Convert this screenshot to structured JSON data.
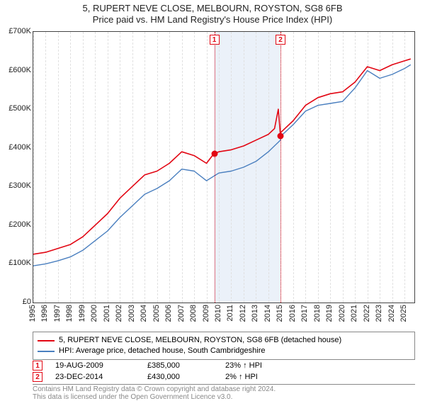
{
  "title": {
    "line1": "5, RUPERT NEVE CLOSE, MELBOURN, ROYSTON, SG8 6FB",
    "line2": "Price paid vs. HM Land Registry's House Price Index (HPI)"
  },
  "chart": {
    "type": "line",
    "plot_bg": "#ffffff",
    "border_color": "#444444",
    "x": {
      "min": 1995,
      "max": 2025.8,
      "ticks": [
        1995,
        1996,
        1997,
        1998,
        1999,
        2000,
        2001,
        2002,
        2003,
        2004,
        2005,
        2006,
        2007,
        2008,
        2009,
        2010,
        2011,
        2012,
        2013,
        2014,
        2015,
        2016,
        2017,
        2018,
        2019,
        2020,
        2021,
        2022,
        2023,
        2024,
        2025
      ]
    },
    "y": {
      "min": 0,
      "max": 700,
      "ticks": [
        0,
        100,
        200,
        300,
        400,
        500,
        600,
        700
      ],
      "prefix": "£",
      "suffix": "K"
    },
    "grid_color": "#e0e0e0",
    "shade": {
      "start": 2009.6,
      "end": 2014.98,
      "color": "#dbe6f4"
    },
    "series": [
      {
        "name": "price_paid",
        "color": "#e20613",
        "width": 1.6,
        "data": [
          [
            1995,
            125
          ],
          [
            1996,
            130
          ],
          [
            1997,
            140
          ],
          [
            1998,
            150
          ],
          [
            1999,
            170
          ],
          [
            2000,
            200
          ],
          [
            2001,
            230
          ],
          [
            2002,
            270
          ],
          [
            2003,
            300
          ],
          [
            2004,
            330
          ],
          [
            2005,
            340
          ],
          [
            2006,
            360
          ],
          [
            2007,
            390
          ],
          [
            2008,
            380
          ],
          [
            2009,
            360
          ],
          [
            2009.6,
            385
          ],
          [
            2010,
            390
          ],
          [
            2011,
            395
          ],
          [
            2012,
            405
          ],
          [
            2013,
            420
          ],
          [
            2014,
            435
          ],
          [
            2014.5,
            450
          ],
          [
            2014.8,
            500
          ],
          [
            2014.98,
            430
          ],
          [
            2015,
            440
          ],
          [
            2016,
            470
          ],
          [
            2017,
            510
          ],
          [
            2018,
            530
          ],
          [
            2019,
            540
          ],
          [
            2020,
            545
          ],
          [
            2021,
            570
          ],
          [
            2022,
            610
          ],
          [
            2023,
            600
          ],
          [
            2024,
            615
          ],
          [
            2025,
            625
          ],
          [
            2025.5,
            630
          ]
        ]
      },
      {
        "name": "hpi",
        "color": "#4a7fbf",
        "width": 1.4,
        "data": [
          [
            1995,
            95
          ],
          [
            1996,
            100
          ],
          [
            1997,
            108
          ],
          [
            1998,
            118
          ],
          [
            1999,
            135
          ],
          [
            2000,
            160
          ],
          [
            2001,
            185
          ],
          [
            2002,
            220
          ],
          [
            2003,
            250
          ],
          [
            2004,
            280
          ],
          [
            2005,
            295
          ],
          [
            2006,
            315
          ],
          [
            2007,
            345
          ],
          [
            2008,
            340
          ],
          [
            2009,
            315
          ],
          [
            2010,
            335
          ],
          [
            2011,
            340
          ],
          [
            2012,
            350
          ],
          [
            2013,
            365
          ],
          [
            2014,
            390
          ],
          [
            2014.98,
            420
          ],
          [
            2015,
            430
          ],
          [
            2016,
            460
          ],
          [
            2017,
            495
          ],
          [
            2018,
            510
          ],
          [
            2019,
            515
          ],
          [
            2020,
            520
          ],
          [
            2021,
            555
          ],
          [
            2022,
            600
          ],
          [
            2023,
            580
          ],
          [
            2024,
            590
          ],
          [
            2025,
            605
          ],
          [
            2025.5,
            615
          ]
        ]
      }
    ],
    "markers": [
      {
        "id": "1",
        "x": 2009.63,
        "y": 385
      },
      {
        "id": "2",
        "x": 2014.98,
        "y": 430
      }
    ]
  },
  "legend": {
    "items": [
      {
        "color": "#e20613",
        "label": "5, RUPERT NEVE CLOSE, MELBOURN, ROYSTON, SG8 6FB (detached house)"
      },
      {
        "color": "#4a7fbf",
        "label": "HPI: Average price, detached house, South Cambridgeshire"
      }
    ]
  },
  "sales": [
    {
      "id": "1",
      "date": "19-AUG-2009",
      "price": "£385,000",
      "hpi": "23% ↑ HPI"
    },
    {
      "id": "2",
      "date": "23-DEC-2014",
      "price": "£430,000",
      "hpi": "2% ↑ HPI"
    }
  ],
  "footer": {
    "line1": "Contains HM Land Registry data © Crown copyright and database right 2024.",
    "line2": "This data is licensed under the Open Government Licence v3.0."
  }
}
